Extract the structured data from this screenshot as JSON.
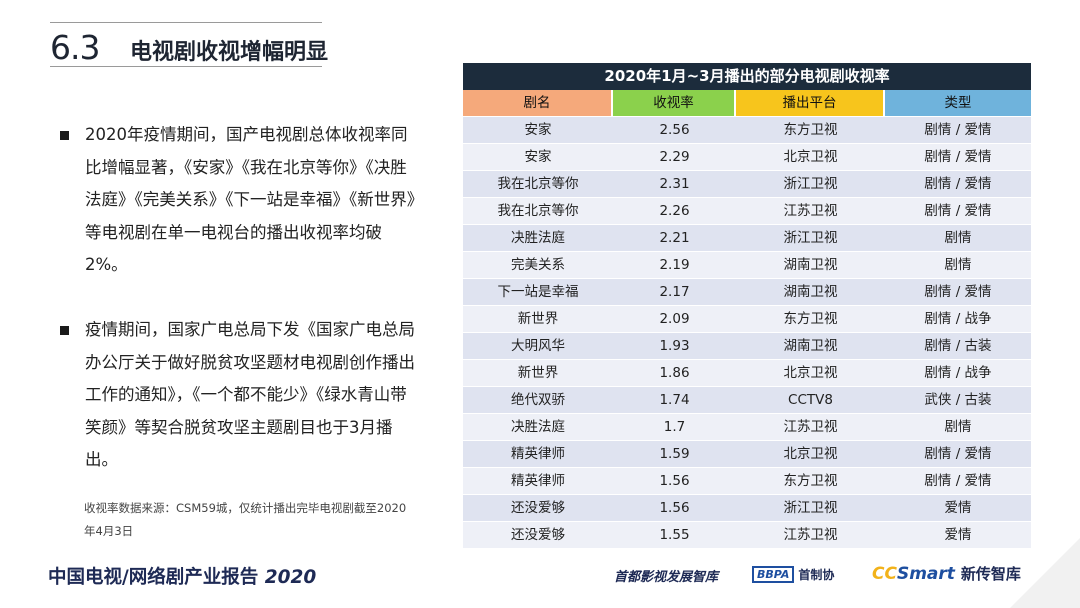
{
  "header": {
    "section_number": "6.3",
    "section_title": "电视剧收视增幅明显"
  },
  "bullets": [
    "2020年疫情期间，国产电视剧总体收视率同比增幅显著，《安家》《我在北京等你》《决胜法庭》《完美关系》《下一站是幸福》《新世界》等电视剧在单一电视台的播出收视率均破2%。",
    "疫情期间，国家广电总局下发《国家广电总局办公厅关于做好脱贫攻坚题材电视剧创作播出工作的通知》，《一个都不能少》《绿水青山带笑颜》等契合脱贫攻坚主题剧目也于3月播出。"
  ],
  "source_note": "收视率数据来源：CSM59城，仅统计播出完毕电视剧截至2020年4月3日",
  "table": {
    "title": "2020年1月~3月播出的部分电视剧收视率",
    "headers": [
      "剧名",
      "收视率",
      "播出平台",
      "类型"
    ],
    "rows": [
      [
        "安家",
        "2.56",
        "东方卫视",
        "剧情 / 爱情"
      ],
      [
        "安家",
        "2.29",
        "北京卫视",
        "剧情 / 爱情"
      ],
      [
        "我在北京等你",
        "2.31",
        "浙江卫视",
        "剧情 / 爱情"
      ],
      [
        "我在北京等你",
        "2.26",
        "江苏卫视",
        "剧情 / 爱情"
      ],
      [
        "决胜法庭",
        "2.21",
        "浙江卫视",
        "剧情"
      ],
      [
        "完美关系",
        "2.19",
        "湖南卫视",
        "剧情"
      ],
      [
        "下一站是幸福",
        "2.17",
        "湖南卫视",
        "剧情 / 爱情"
      ],
      [
        "新世界",
        "2.09",
        "东方卫视",
        "剧情 / 战争"
      ],
      [
        "大明风华",
        "1.93",
        "湖南卫视",
        "剧情 / 古装"
      ],
      [
        "新世界",
        "1.86",
        "北京卫视",
        "剧情 / 战争"
      ],
      [
        "绝代双骄",
        "1.74",
        "CCTV8",
        "武侠 / 古装"
      ],
      [
        "决胜法庭",
        "1.7",
        "江苏卫视",
        "剧情"
      ],
      [
        "精英律师",
        "1.59",
        "北京卫视",
        "剧情 / 爱情"
      ],
      [
        "精英律师",
        "1.56",
        "东方卫视",
        "剧情 / 爱情"
      ],
      [
        "还没爱够",
        "1.56",
        "浙江卫视",
        "爱情"
      ],
      [
        "还没爱够",
        "1.55",
        "江苏卫视",
        "爱情"
      ]
    ]
  },
  "footer": {
    "report_title": "中国电视/网络剧产业报告",
    "report_year": "2020",
    "logo1": "首都影视发展智库",
    "logo2_box": "BBPA",
    "logo2_text": "首制协",
    "logo3_cc": "CC",
    "logo3_smart": "Smart",
    "logo3_cn": "新传智库"
  }
}
